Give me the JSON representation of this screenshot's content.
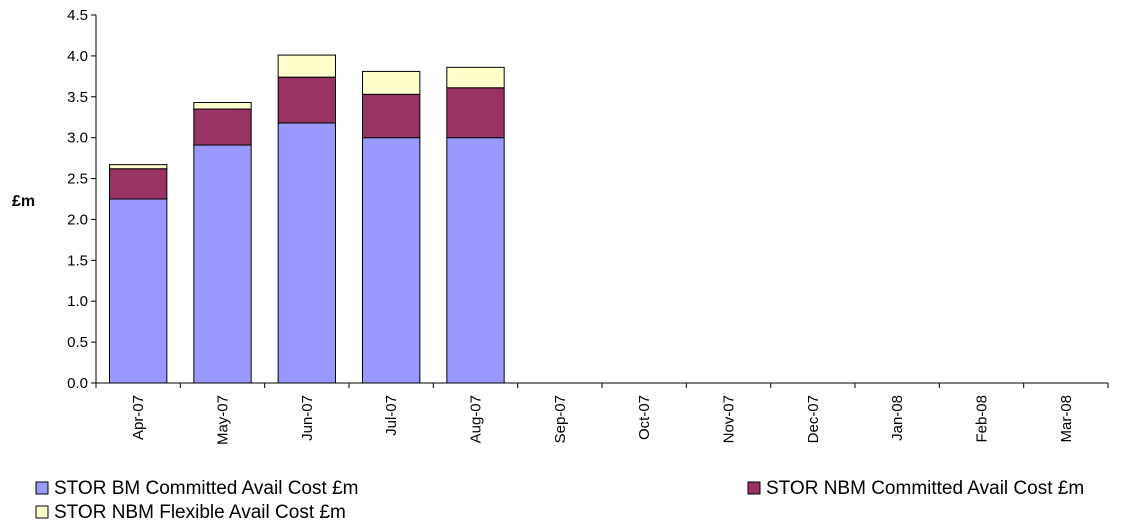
{
  "chart_data": {
    "type": "bar",
    "stacked": true,
    "title": "",
    "xlabel": "",
    "ylabel": "£m",
    "ylim": [
      0,
      4.5
    ],
    "yticks": [
      "0.0",
      "0.5",
      "1.0",
      "1.5",
      "2.0",
      "2.5",
      "3.0",
      "3.5",
      "4.0",
      "4.5"
    ],
    "grid": false,
    "legend_position": "bottom",
    "categories": [
      "Apr-07",
      "May-07",
      "Jun-07",
      "Jul-07",
      "Aug-07",
      "Sep-07",
      "Oct-07",
      "Nov-07",
      "Dec-07",
      "Jan-08",
      "Feb-08",
      "Mar-08"
    ],
    "series": [
      {
        "name": "STOR BM  Committed Avail Cost £m",
        "color": "#9999ff",
        "values": [
          2.25,
          2.91,
          3.18,
          3.0,
          3.0,
          null,
          null,
          null,
          null,
          null,
          null,
          null
        ]
      },
      {
        "name": "STOR NBM Committed Avail Cost £m",
        "color": "#993366",
        "values": [
          0.37,
          0.44,
          0.56,
          0.53,
          0.61,
          null,
          null,
          null,
          null,
          null,
          null,
          null
        ]
      },
      {
        "name": "STOR NBM Flexible Avail Cost £m",
        "color": "#ffffcc",
        "values": [
          0.05,
          0.08,
          0.27,
          0.28,
          0.25,
          null,
          null,
          null,
          null,
          null,
          null,
          null
        ]
      }
    ]
  }
}
